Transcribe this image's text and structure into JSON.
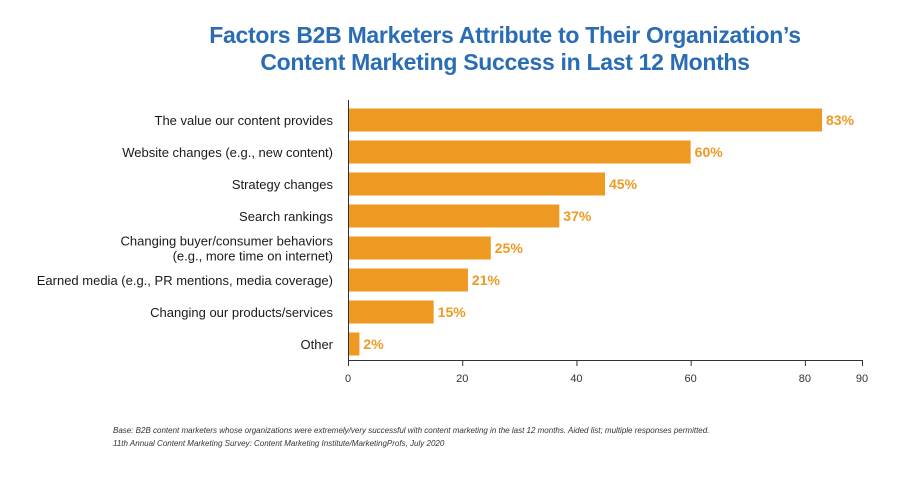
{
  "title": {
    "line1": "Factors B2B Marketers Attribute to Their Organization’s",
    "line2": "Content Marketing Success in Last 12 Months"
  },
  "footer": {
    "base": "Base: B2B content marketers whose organizations were extremely/very successful with content marketing in the last 12 months. Aided list; multiple responses permitted.",
    "source": "11th Annual Content Marketing Survey: Content Marketing Institute/MarketingProfs, July 2020"
  },
  "colors": {
    "bar": "#ee9a22",
    "label": "#ee9a22",
    "axis": "#333333"
  },
  "chart_data": {
    "type": "bar",
    "orientation": "horizontal",
    "categories": [
      [
        "The value our content provides"
      ],
      [
        "Website changes (e.g., new content)"
      ],
      [
        "Strategy changes"
      ],
      [
        "Search rankings"
      ],
      [
        "Changing buyer/consumer behaviors",
        "(e.g., more time on internet)"
      ],
      [
        "Earned media (e.g., PR mentions, media coverage)"
      ],
      [
        "Changing our products/services"
      ],
      [
        "Other"
      ]
    ],
    "values": [
      83,
      60,
      45,
      37,
      25,
      21,
      15,
      2
    ],
    "value_labels": [
      "83%",
      "60%",
      "45%",
      "37%",
      "25%",
      "21%",
      "15%",
      "2%"
    ],
    "xlim": [
      0,
      90
    ],
    "xticks": [
      0,
      20,
      40,
      60,
      80,
      90
    ],
    "grid": false
  }
}
